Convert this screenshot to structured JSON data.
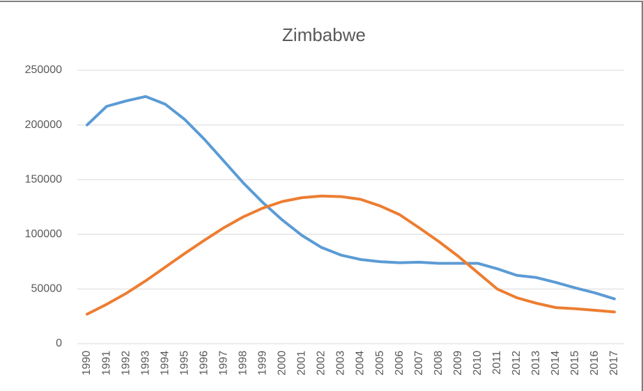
{
  "chart_data": {
    "type": "line",
    "title": "Zimbabwe",
    "categories": [
      "1990",
      "1991",
      "1992",
      "1993",
      "1994",
      "1995",
      "1996",
      "1997",
      "1998",
      "1999",
      "2000",
      "2001",
      "2002",
      "2003",
      "2004",
      "2005",
      "2006",
      "2007",
      "2008",
      "2009",
      "2010",
      "2011",
      "2012",
      "2013",
      "2014",
      "2015",
      "2016",
      "2017"
    ],
    "series": [
      {
        "color": "#5b9bd5",
        "values": [
          200000,
          217000,
          222000,
          226000,
          219000,
          205000,
          187000,
          167000,
          147000,
          129000,
          113000,
          99000,
          88000,
          81000,
          77000,
          75000,
          74000,
          74500,
          73500,
          73500,
          73500,
          68500,
          62500,
          60500,
          56000,
          51000,
          46500,
          41000
        ]
      },
      {
        "color": "#ed7d31",
        "values": [
          27000,
          36000,
          46000,
          57500,
          70000,
          82500,
          94500,
          106000,
          116000,
          124000,
          130000,
          133500,
          135000,
          134500,
          132000,
          126000,
          118000,
          106000,
          93500,
          80000,
          65000,
          50000,
          42000,
          37000,
          33000,
          32000,
          30500,
          29000
        ]
      }
    ],
    "ylim": [
      0,
      250000
    ],
    "yticks": [
      0,
      50000,
      100000,
      150000,
      200000,
      250000
    ],
    "grid": true
  }
}
